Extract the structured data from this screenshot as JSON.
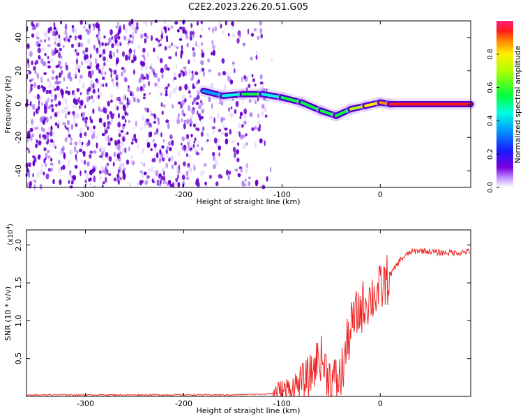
{
  "figure": {
    "title": "C2E2.2023.226.20.51.G05"
  },
  "colors": {
    "snr_line": "#ee2222",
    "axis": "#000000",
    "spec_low": "#6600cc"
  },
  "chart_data": [
    {
      "type": "heatmap",
      "title": "C2E2.2023.226.20.51.G05",
      "xlabel": "Height of straight line (km)",
      "ylabel": "Frequency (Hz)",
      "xlim": [
        -360,
        92
      ],
      "ylim": [
        -50,
        50
      ],
      "x_ticks": [
        -300,
        -200,
        -100,
        0
      ],
      "y_ticks": [
        -40,
        -20,
        0,
        20,
        40
      ],
      "colorbar": {
        "label": "Normalized spectral amplitude",
        "range": [
          0,
          1
        ],
        "ticks": [
          "0.0",
          "0.2",
          "0.4",
          "0.6",
          "0.8"
        ],
        "tick_values": [
          0,
          0.2,
          0.4,
          0.6,
          0.8
        ]
      },
      "ridge": {
        "x": [
          -180,
          -160,
          -140,
          -120,
          -100,
          -80,
          -60,
          -45,
          -30,
          -15,
          0,
          10,
          92
        ],
        "freq": [
          8,
          5,
          6,
          6,
          4,
          1,
          -4,
          -7,
          -3,
          -1,
          1,
          0,
          0
        ],
        "amplitude": [
          0.35,
          0.5,
          0.55,
          0.5,
          0.6,
          0.6,
          0.55,
          0.6,
          0.7,
          0.8,
          0.9,
          0.95,
          0.95
        ]
      },
      "noise_region_x": [
        -360,
        -120
      ]
    },
    {
      "type": "line",
      "xlabel": "Height of straight line (km)",
      "ylabel": "SNR (10 * v/v)",
      "y_multiplier": "(x10^4)",
      "multiplier_base": "(x10",
      "multiplier_exp": "4",
      "multiplier_close": ")",
      "xlim": [
        -360,
        92
      ],
      "ylim": [
        0,
        2.2
      ],
      "x_ticks": [
        -300,
        -200,
        -100,
        0
      ],
      "y_ticks": [
        0.5,
        1.0,
        1.5,
        2.0
      ],
      "series": [
        {
          "name": "SNR",
          "x": [
            -360,
            -300,
            -250,
            -200,
            -150,
            -120,
            -100,
            -90,
            -80,
            -70,
            -62,
            -55,
            -50,
            -45,
            -40,
            -35,
            -30,
            -25,
            -20,
            -15,
            -10,
            -5,
            0,
            10,
            20,
            30,
            40,
            60,
            80,
            92
          ],
          "y": [
            0.02,
            0.02,
            0.02,
            0.02,
            0.02,
            0.03,
            0.05,
            0.1,
            0.18,
            0.3,
            0.55,
            0.35,
            0.2,
            0.2,
            0.25,
            0.6,
            0.9,
            1.05,
            1.15,
            1.25,
            1.3,
            1.35,
            1.4,
            1.6,
            1.8,
            1.9,
            1.93,
            1.9,
            1.9,
            1.92
          ]
        }
      ]
    }
  ]
}
